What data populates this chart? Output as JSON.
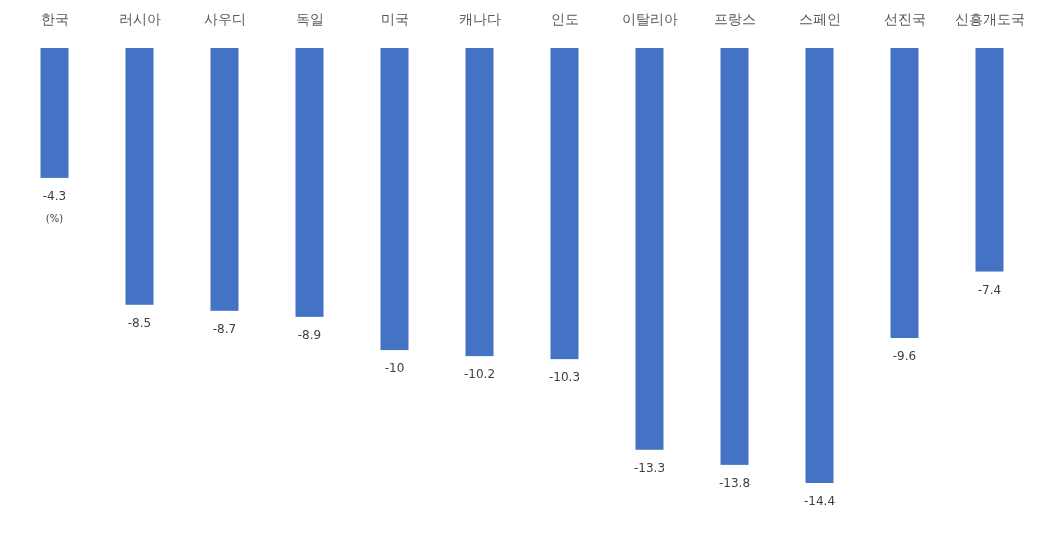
{
  "chart_data": {
    "type": "bar",
    "categories": [
      "한국",
      "러시아",
      "사우디",
      "독일",
      "미국",
      "캐나다",
      "인도",
      "이탈리아",
      "프랑스",
      "스페인",
      "선진국",
      "신흥개도국"
    ],
    "values": [
      -4.3,
      -8.5,
      -8.7,
      -8.9,
      -10,
      -10.2,
      -10.3,
      -13.3,
      -13.8,
      -14.4,
      -9.6,
      -7.4
    ],
    "color": "#4472c4",
    "data_labels": true,
    "annotations": [
      "(%)"
    ]
  }
}
